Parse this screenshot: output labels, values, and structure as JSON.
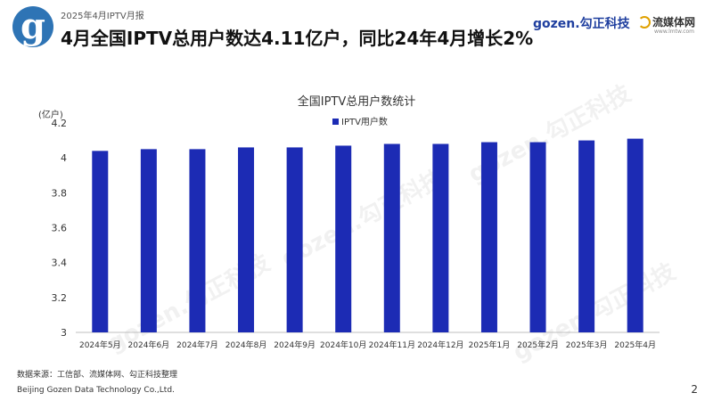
{
  "header": {
    "logo_letter": "g",
    "report_label": "2025年4月IPTV月报",
    "headline": "4月全国IPTV总用户数达4.11亿户，同比24年4月增长2%",
    "brand_gozen": "gozen.勾正科技",
    "brand_lmtw": "流媒体网",
    "brand_lmtw_sub": "www.lmtw.com"
  },
  "watermarks": [
    "gozen.勾正科技",
    "gozen.勾正科技",
    "gozen.勾正科技",
    "gozen.勾正科技"
  ],
  "chart_data": {
    "type": "bar",
    "title": "全国IPTV总用户数统计",
    "ylabel": "(亿户)",
    "xlabel": "",
    "categories": [
      "2024年5月",
      "2024年6月",
      "2024年7月",
      "2024年8月",
      "2024年9月",
      "2024年10月",
      "2024年11月",
      "2024年12月",
      "2025年1月",
      "2025年2月",
      "2025年3月",
      "2025年4月"
    ],
    "series": [
      {
        "name": "IPTV用户数",
        "values": [
          4.04,
          4.05,
          4.05,
          4.06,
          4.06,
          4.07,
          4.08,
          4.08,
          4.09,
          4.09,
          4.1,
          4.11
        ]
      }
    ],
    "ylim": [
      3,
      4.2
    ],
    "yticks": [
      3,
      3.2,
      3.4,
      3.6,
      3.8,
      4,
      4.2
    ],
    "ytick_labels": [
      "3",
      "3.2",
      "3.4",
      "3.6",
      "3.8",
      "4",
      "4.2"
    ],
    "color": "#1c2bb4",
    "grid": false,
    "legend_position": "top-center"
  },
  "footer": {
    "source": "数据来源：工信部、流媒体网、勾正科技整理",
    "company": "Beijing Gozen Data Technology Co.,Ltd.",
    "page_number": "2"
  }
}
